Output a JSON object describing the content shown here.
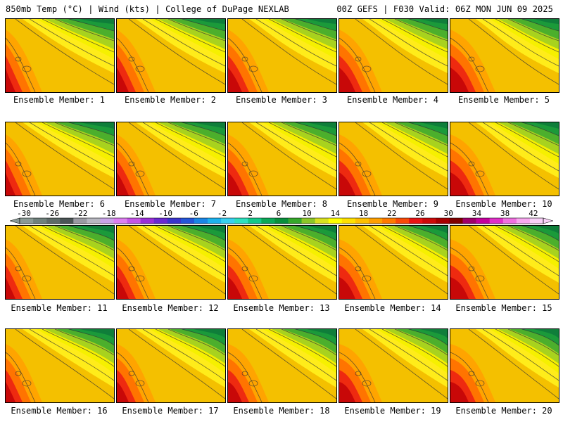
{
  "header": {
    "left": "850mb Temp (°C) | Wind (kts) | College of DuPage NEXLAB",
    "right": "00Z GEFS | F030 Valid: 06Z MON JUN 09 2025"
  },
  "members": [
    {
      "label": "Ensemble Member: 1"
    },
    {
      "label": "Ensemble Member: 2"
    },
    {
      "label": "Ensemble Member: 3"
    },
    {
      "label": "Ensemble Member: 4"
    },
    {
      "label": "Ensemble Member: 5"
    },
    {
      "label": "Ensemble Member: 6"
    },
    {
      "label": "Ensemble Member: 7"
    },
    {
      "label": "Ensemble Member: 8"
    },
    {
      "label": "Ensemble Member: 9"
    },
    {
      "label": "Ensemble Member: 10"
    },
    {
      "label": "Ensemble Member: 11"
    },
    {
      "label": "Ensemble Member: 12"
    },
    {
      "label": "Ensemble Member: 13"
    },
    {
      "label": "Ensemble Member: 14"
    },
    {
      "label": "Ensemble Member: 15"
    },
    {
      "label": "Ensemble Member: 16"
    },
    {
      "label": "Ensemble Member: 17"
    },
    {
      "label": "Ensemble Member: 18"
    },
    {
      "label": "Ensemble Member: 19"
    },
    {
      "label": "Ensemble Member: 20"
    }
  ],
  "colorbar": {
    "tick_labels": [
      "-30",
      "-26",
      "-22",
      "-18",
      "-14",
      "-10",
      "-6",
      "-2",
      "2",
      "6",
      "10",
      "14",
      "18",
      "22",
      "26",
      "30",
      "34",
      "38",
      "42"
    ],
    "colors": [
      "#8a9a96",
      "#6f817c",
      "#5d6a68",
      "#4b5556",
      "#9a9aa3",
      "#b7b7c0",
      "#c9a3e8",
      "#dd7ff0",
      "#c455e6",
      "#9a30d8",
      "#6a2ad0",
      "#3a34cc",
      "#2456d8",
      "#1a86e6",
      "#1cb2ee",
      "#38d0f0",
      "#2ee0c0",
      "#14c88a",
      "#0ca858",
      "#0a8f3c",
      "#36a82c",
      "#8cc628",
      "#d8e020",
      "#ffff00",
      "#ffe000",
      "#ffc000",
      "#ffa000",
      "#ff7a00",
      "#f84a08",
      "#e81414",
      "#cc0a0a",
      "#a80000",
      "#800000",
      "#a0006a",
      "#c4009c",
      "#e030c8",
      "#f070e0",
      "#f8a8f0",
      "#f8d0f8"
    ]
  }
}
